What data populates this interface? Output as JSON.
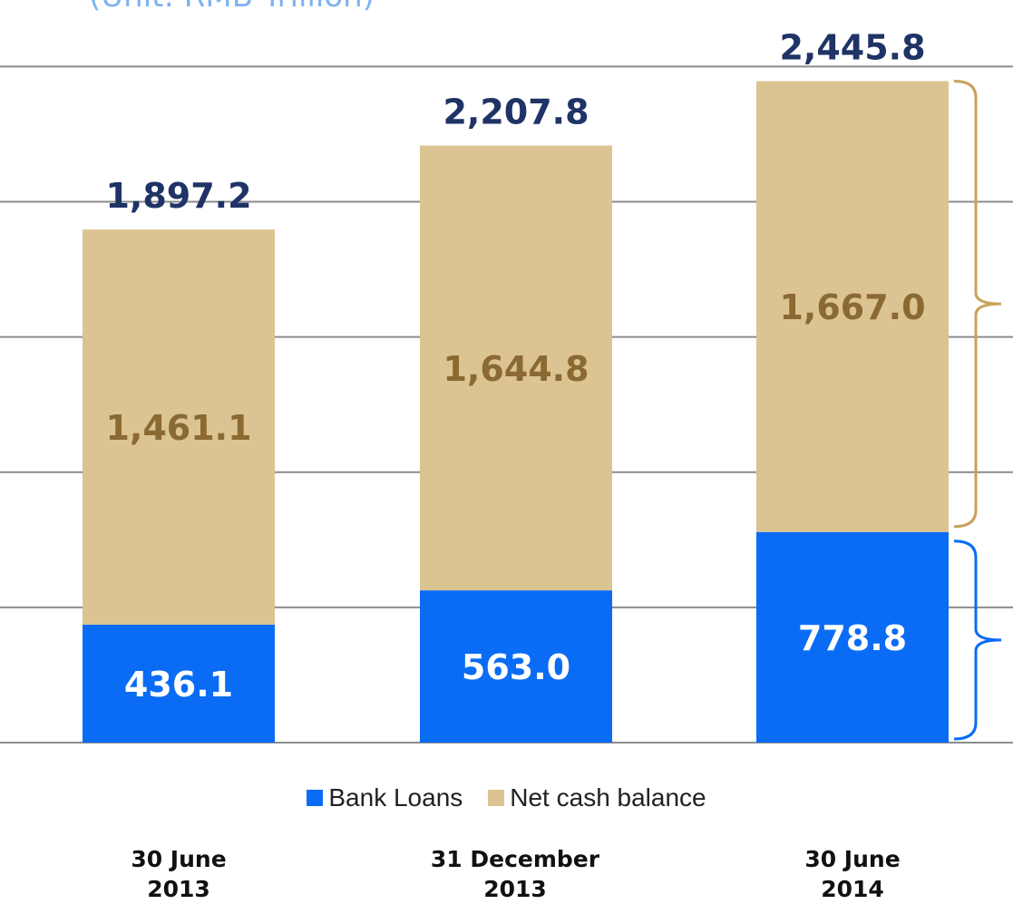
{
  "unit_label": "(Unit: RMB Trillion)",
  "colors": {
    "bank_loans": "#0a6cf5",
    "net_cash": "#dcc392",
    "net_cash_text": "#8a6a32",
    "total_text": "#1f3366",
    "bank_loans_text": "#ffffff",
    "grid": "#8c8c8c",
    "bracket_gold": "#c9a25c",
    "bracket_blue": "#0a6cf5"
  },
  "legend": [
    {
      "label": "Bank Loans",
      "color": "#0a6cf5"
    },
    {
      "label": "Net cash balance",
      "color": "#dcc392"
    }
  ],
  "categories": [
    {
      "line1": "30 June",
      "line2": "2013"
    },
    {
      "line1": "31 December",
      "line2": "2013"
    },
    {
      "line1": "30 June",
      "line2": "2014"
    }
  ],
  "chart_data": {
    "type": "bar",
    "stacked": true,
    "categories": [
      "30 June 2013",
      "31 December 2013",
      "30 June 2014"
    ],
    "series": [
      {
        "name": "Bank Loans",
        "values": [
          436.1,
          563.0,
          778.8
        ],
        "labels": [
          "436.1",
          "563.0",
          "778.8"
        ]
      },
      {
        "name": "Net cash balance",
        "values": [
          1461.1,
          1644.8,
          1667.0
        ],
        "labels": [
          "1,461.1",
          "1,644.8",
          "1,667.0"
        ]
      }
    ],
    "totals": [
      1897.2,
      2207.8,
      2445.8
    ],
    "total_labels": [
      "1,897.2",
      "2,207.8",
      "2,445.8"
    ],
    "ylim": [
      0,
      2500
    ],
    "grid": true,
    "legend_position": "bottom"
  }
}
